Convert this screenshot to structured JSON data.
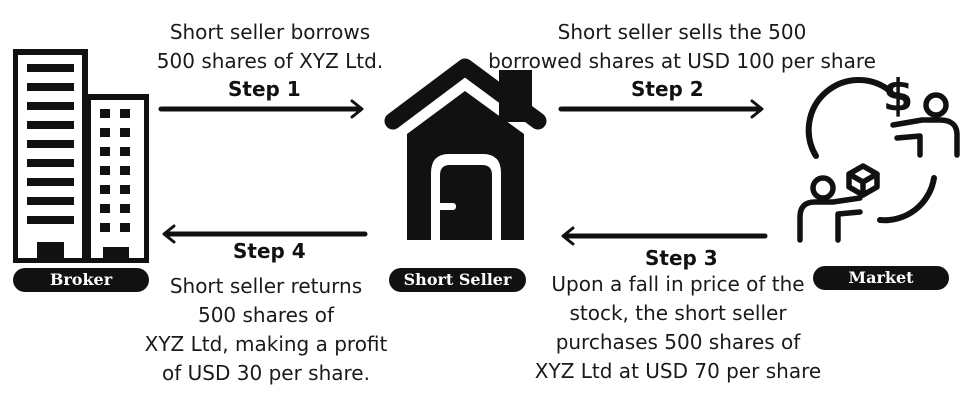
{
  "actors": {
    "broker": "Broker",
    "short_seller": "Short Seller",
    "market": "Market"
  },
  "steps": [
    {
      "label": "Step 1",
      "lines": [
        "Short seller borrows",
        "500 shares of XYZ Ltd."
      ]
    },
    {
      "label": "Step 2",
      "lines": [
        "Short seller sells the 500",
        "borrowed shares at USD 100 per share"
      ]
    },
    {
      "label": "Step 3",
      "lines": [
        "Upon a fall in price of the",
        "stock, the short seller",
        "purchases 500 shares of",
        "XYZ Ltd at USD 70 per share"
      ]
    },
    {
      "label": "Step 4",
      "lines": [
        "Short seller returns",
        "500 shares of",
        "XYZ Ltd, making a profit",
        "of USD 30 per share."
      ]
    }
  ],
  "icons": {
    "broker": "office-buildings-icon",
    "short_seller": "house-icon",
    "market": "exchange-cycle-icon",
    "currency_symbol": "$"
  },
  "colors": {
    "ink": "#111111",
    "pill_text": "#ffffff"
  }
}
